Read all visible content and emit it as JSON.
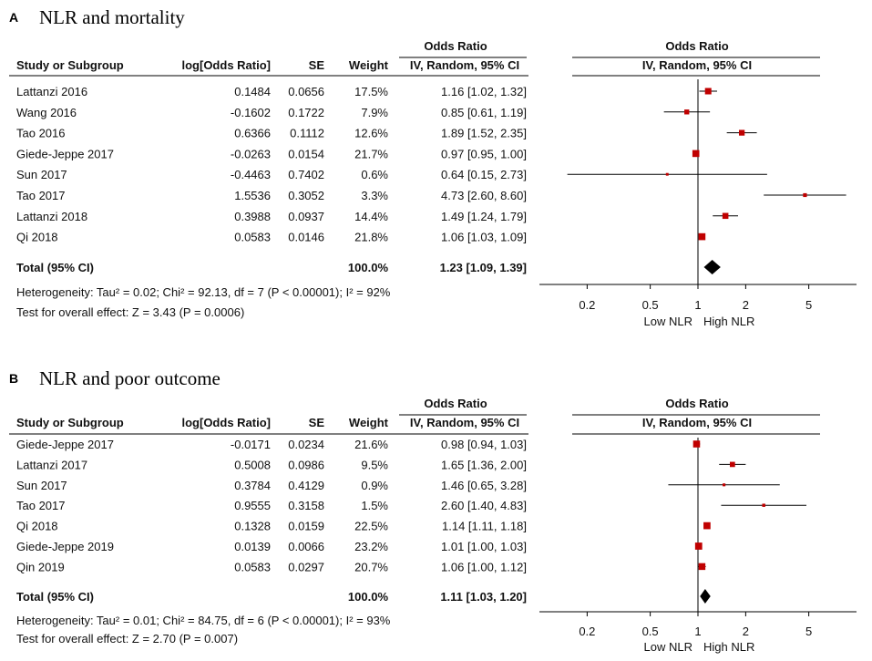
{
  "chart_data": [
    {
      "type": "forest",
      "panel_label": "A",
      "title": "NLR and mortality",
      "headers": {
        "study": "Study or Subgroup",
        "log_or": "log[Odds Ratio]",
        "se": "SE",
        "weight": "Weight",
        "or_top": "Odds Ratio",
        "or_bottom": "IV, Random, 95% CI",
        "plot_top": "Odds Ratio",
        "plot_bottom": "IV, Random, 95% CI"
      },
      "studies": [
        {
          "name": "Lattanzi 2016",
          "log_or": "0.1484",
          "se": "0.0656",
          "weight": "17.5%",
          "ci_text": "1.16 [1.02, 1.32]",
          "or": 1.16,
          "lo": 1.02,
          "hi": 1.32,
          "w": 17.5
        },
        {
          "name": "Wang 2016",
          "log_or": "-0.1602",
          "se": "0.1722",
          "weight": "7.9%",
          "ci_text": "0.85 [0.61, 1.19]",
          "or": 0.85,
          "lo": 0.61,
          "hi": 1.19,
          "w": 7.9
        },
        {
          "name": "Tao 2016",
          "log_or": "0.6366",
          "se": "0.1112",
          "weight": "12.6%",
          "ci_text": "1.89 [1.52, 2.35]",
          "or": 1.89,
          "lo": 1.52,
          "hi": 2.35,
          "w": 12.6
        },
        {
          "name": "Giede-Jeppe 2017",
          "log_or": "-0.0263",
          "se": "0.0154",
          "weight": "21.7%",
          "ci_text": "0.97 [0.95, 1.00]",
          "or": 0.97,
          "lo": 0.95,
          "hi": 1.0,
          "w": 21.7
        },
        {
          "name": "Sun 2017",
          "log_or": "-0.4463",
          "se": "0.7402",
          "weight": "0.6%",
          "ci_text": "0.64 [0.15, 2.73]",
          "or": 0.64,
          "lo": 0.15,
          "hi": 2.73,
          "w": 0.6
        },
        {
          "name": "Tao 2017",
          "log_or": "1.5536",
          "se": "0.3052",
          "weight": "3.3%",
          "ci_text": "4.73 [2.60, 8.60]",
          "or": 4.73,
          "lo": 2.6,
          "hi": 8.6,
          "w": 3.3
        },
        {
          "name": "Lattanzi 2018",
          "log_or": "0.3988",
          "se": "0.0937",
          "weight": "14.4%",
          "ci_text": "1.49 [1.24, 1.79]",
          "or": 1.49,
          "lo": 1.24,
          "hi": 1.79,
          "w": 14.4
        },
        {
          "name": "Qi 2018",
          "log_or": "0.0583",
          "se": "0.0146",
          "weight": "21.8%",
          "ci_text": "1.06 [1.03, 1.09]",
          "or": 1.06,
          "lo": 1.03,
          "hi": 1.09,
          "w": 21.8
        }
      ],
      "total": {
        "label": "Total (95% CI)",
        "weight": "100.0%",
        "ci_text": "1.23 [1.09, 1.39]",
        "or": 1.23,
        "lo": 1.09,
        "hi": 1.39
      },
      "heterogeneity": "Heterogeneity: Tau² = 0.02; Chi² = 92.13, df = 7 (P < 0.00001); I² = 92%",
      "overall_test": "Test for overall effect: Z = 3.43 (P = 0.0006)",
      "x_scale": "log",
      "xlim": [
        0.1,
        10
      ],
      "ticks": [
        0.2,
        0.5,
        1,
        2,
        5
      ],
      "tick_labels": [
        "0.2",
        "0.5",
        "1",
        "2",
        "5"
      ],
      "favours_left": "Low NLR",
      "favours_right": "High NLR"
    },
    {
      "type": "forest",
      "panel_label": "B",
      "title": "NLR and poor outcome",
      "headers": {
        "study": "Study or Subgroup",
        "log_or": "log[Odds Ratio]",
        "se": "SE",
        "weight": "Weight",
        "or_top": "Odds Ratio",
        "or_bottom": "IV, Random, 95% CI",
        "plot_top": "Odds Ratio",
        "plot_bottom": "IV, Random, 95% CI"
      },
      "studies": [
        {
          "name": "Giede-Jeppe 2017",
          "log_or": "-0.0171",
          "se": "0.0234",
          "weight": "21.6%",
          "ci_text": "0.98 [0.94, 1.03]",
          "or": 0.98,
          "lo": 0.94,
          "hi": 1.03,
          "w": 21.6
        },
        {
          "name": "Lattanzi 2017",
          "log_or": "0.5008",
          "se": "0.0986",
          "weight": "9.5%",
          "ci_text": "1.65 [1.36, 2.00]",
          "or": 1.65,
          "lo": 1.36,
          "hi": 2.0,
          "w": 9.5
        },
        {
          "name": "Sun 2017",
          "log_or": "0.3784",
          "se": "0.4129",
          "weight": "0.9%",
          "ci_text": "1.46 [0.65, 3.28]",
          "or": 1.46,
          "lo": 0.65,
          "hi": 3.28,
          "w": 0.9
        },
        {
          "name": "Tao 2017",
          "log_or": "0.9555",
          "se": "0.3158",
          "weight": "1.5%",
          "ci_text": "2.60 [1.40, 4.83]",
          "or": 2.6,
          "lo": 1.4,
          "hi": 4.83,
          "w": 1.5
        },
        {
          "name": "Qi 2018",
          "log_or": "0.1328",
          "se": "0.0159",
          "weight": "22.5%",
          "ci_text": "1.14 [1.11, 1.18]",
          "or": 1.14,
          "lo": 1.11,
          "hi": 1.18,
          "w": 22.5
        },
        {
          "name": "Giede-Jeppe 2019",
          "log_or": "0.0139",
          "se": "0.0066",
          "weight": "23.2%",
          "ci_text": "1.01 [1.00, 1.03]",
          "or": 1.01,
          "lo": 1.0,
          "hi": 1.03,
          "w": 23.2
        },
        {
          "name": "Qin 2019",
          "log_or": "0.0583",
          "se": "0.0297",
          "weight": "20.7%",
          "ci_text": "1.06 [1.00, 1.12]",
          "or": 1.06,
          "lo": 1.0,
          "hi": 1.12,
          "w": 20.7
        }
      ],
      "total": {
        "label": "Total (95% CI)",
        "weight": "100.0%",
        "ci_text": "1.11 [1.03, 1.20]",
        "or": 1.11,
        "lo": 1.03,
        "hi": 1.2
      },
      "heterogeneity": "Heterogeneity: Tau² = 0.01; Chi² = 84.75, df = 6 (P < 0.00001); I² = 93%",
      "overall_test": "Test for overall effect: Z = 2.70 (P = 0.007)",
      "x_scale": "log",
      "xlim": [
        0.1,
        10
      ],
      "ticks": [
        0.2,
        0.5,
        1,
        2,
        5
      ],
      "tick_labels": [
        "0.2",
        "0.5",
        "1",
        "2",
        "5"
      ],
      "favours_left": "Low NLR",
      "favours_right": "High NLR"
    }
  ],
  "colors": {
    "square": "#c00000",
    "diamond": "#000000",
    "text": "#111111",
    "line": "#000000"
  }
}
